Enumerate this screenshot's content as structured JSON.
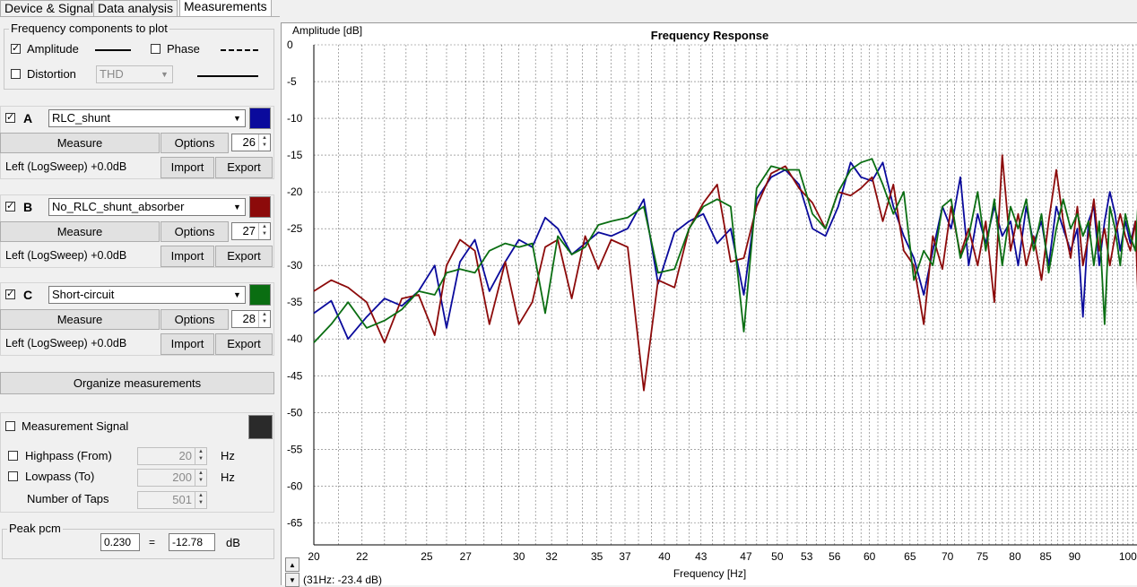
{
  "tabs": [
    "Device & Signal",
    "Data analysis",
    "Measurements"
  ],
  "freq_components": {
    "title": "Frequency components to plot",
    "amplitude_label": "Amplitude",
    "phase_label": "Phase",
    "distortion_label": "Distortion",
    "distortion_select": "THD"
  },
  "measurements": [
    {
      "letter": "A",
      "name": "RLC_shunt",
      "color": "#0a0a9c",
      "taps": "26",
      "source": "Left (LogSweep) +0.0dB"
    },
    {
      "letter": "B",
      "name": "No_RLC_shunt_absorber",
      "color": "#8c0a0a",
      "taps": "27",
      "source": "Left (LogSweep) +0.0dB"
    },
    {
      "letter": "C",
      "name": "Short-circuit",
      "color": "#0a6e12",
      "taps": "28",
      "source": "Left (LogSweep) +0.0dB"
    }
  ],
  "buttons": {
    "measure": "Measure",
    "options": "Options",
    "import": "Import",
    "export": "Export",
    "organize": "Organize measurements"
  },
  "signal": {
    "measurement_signal_label": "Measurement Signal",
    "signal_color": "#2a2a2a",
    "highpass_label": "Highpass (From)",
    "highpass_value": "20",
    "highpass_unit": "Hz",
    "lowpass_label": "Lowpass (To)",
    "lowpass_value": "200",
    "lowpass_unit": "Hz",
    "taps_label": "Number of Taps",
    "taps_value": "501"
  },
  "peak": {
    "label": "Peak pcm",
    "value": "0.230",
    "eq": "=",
    "db_value": "-12.78",
    "unit": "dB"
  },
  "status": "(31Hz: -23.4 dB)",
  "chart_data": {
    "type": "line",
    "title": "Frequency Response",
    "xlabel": "Frequency [Hz]",
    "ylabel": "Amplitude [dB]",
    "xscale": "log",
    "xlim": [
      20,
      102
    ],
    "ylim": [
      -68,
      0
    ],
    "xticks": [
      20,
      22,
      25,
      27,
      30,
      32,
      35,
      37,
      40,
      43,
      47,
      50,
      53,
      56,
      60,
      65,
      70,
      75,
      80,
      85,
      90,
      100
    ],
    "yticks": [
      0,
      -5,
      -10,
      -15,
      -20,
      -25,
      -30,
      -35,
      -40,
      -45,
      -50,
      -55,
      -60,
      -65
    ],
    "grid": true,
    "series": [
      {
        "color": "#0a0a9c",
        "points": [
          [
            20,
            -36.5
          ],
          [
            20.7,
            -34.8
          ],
          [
            21.4,
            -40
          ],
          [
            22.2,
            -37
          ],
          [
            23,
            -34.5
          ],
          [
            23.8,
            -35.5
          ],
          [
            24.6,
            -33.5
          ],
          [
            25.4,
            -30
          ],
          [
            26,
            -38.5
          ],
          [
            26.7,
            -29.5
          ],
          [
            27.5,
            -26.5
          ],
          [
            28.3,
            -33.5
          ],
          [
            29.2,
            -29.5
          ],
          [
            30,
            -26.5
          ],
          [
            30.8,
            -27.5
          ],
          [
            31.6,
            -23.5
          ],
          [
            32.4,
            -25
          ],
          [
            33.3,
            -28.5
          ],
          [
            34.2,
            -27
          ],
          [
            35.1,
            -25.5
          ],
          [
            36,
            -26
          ],
          [
            37.2,
            -25
          ],
          [
            38.4,
            -21
          ],
          [
            39.5,
            -32.5
          ],
          [
            40.8,
            -25.5
          ],
          [
            42,
            -24
          ],
          [
            43.2,
            -23
          ],
          [
            44.4,
            -27
          ],
          [
            45.6,
            -25
          ],
          [
            46.8,
            -34
          ],
          [
            48,
            -21
          ],
          [
            49.4,
            -18
          ],
          [
            50.8,
            -17
          ],
          [
            52.2,
            -19
          ],
          [
            53.6,
            -25
          ],
          [
            55,
            -26
          ],
          [
            56.4,
            -22
          ],
          [
            57.8,
            -16
          ],
          [
            59,
            -18
          ],
          [
            60.3,
            -18.5
          ],
          [
            61.6,
            -16
          ],
          [
            62.9,
            -22
          ],
          [
            64.2,
            -26
          ],
          [
            65.5,
            -29
          ],
          [
            66.8,
            -34
          ],
          [
            68,
            -28
          ],
          [
            69.3,
            -22
          ],
          [
            70.5,
            -25
          ],
          [
            71.8,
            -18
          ],
          [
            73,
            -30
          ],
          [
            74.3,
            -23
          ],
          [
            75.5,
            -27
          ],
          [
            76.8,
            -22
          ],
          [
            78,
            -26
          ],
          [
            79.3,
            -24
          ],
          [
            80.5,
            -30
          ],
          [
            81.8,
            -22
          ],
          [
            83,
            -27
          ],
          [
            84.3,
            -24
          ],
          [
            85.5,
            -30
          ],
          [
            86.8,
            -22
          ],
          [
            88,
            -25
          ],
          [
            89.3,
            -28
          ],
          [
            90.5,
            -25
          ],
          [
            91.5,
            -37
          ],
          [
            92.5,
            -24
          ],
          [
            93.5,
            -22
          ],
          [
            94.5,
            -30
          ],
          [
            95.5,
            -24
          ],
          [
            96.5,
            -20
          ],
          [
            97.5,
            -23
          ],
          [
            98.5,
            -28
          ],
          [
            99.5,
            -24
          ],
          [
            100.5,
            -27
          ],
          [
            101.5,
            -24
          ],
          [
            102,
            -28
          ]
        ]
      },
      {
        "color": "#8c0a0a",
        "points": [
          [
            20,
            -33.5
          ],
          [
            20.7,
            -32
          ],
          [
            21.4,
            -33
          ],
          [
            22.2,
            -35
          ],
          [
            23,
            -40.5
          ],
          [
            23.8,
            -34.5
          ],
          [
            24.6,
            -34
          ],
          [
            25.4,
            -39.5
          ],
          [
            26,
            -30
          ],
          [
            26.7,
            -26.5
          ],
          [
            27.5,
            -28
          ],
          [
            28.3,
            -38
          ],
          [
            29.2,
            -29.5
          ],
          [
            30,
            -38
          ],
          [
            30.8,
            -35
          ],
          [
            31.6,
            -27.5
          ],
          [
            32.4,
            -26.5
          ],
          [
            33.3,
            -34.5
          ],
          [
            34.2,
            -26
          ],
          [
            35.1,
            -30.5
          ],
          [
            36,
            -26.5
          ],
          [
            37.2,
            -27.5
          ],
          [
            38.4,
            -47
          ],
          [
            39.5,
            -32
          ],
          [
            40.8,
            -33
          ],
          [
            42,
            -25
          ],
          [
            43.2,
            -21.5
          ],
          [
            44.4,
            -19
          ],
          [
            45.6,
            -29.5
          ],
          [
            46.8,
            -29
          ],
          [
            48,
            -22
          ],
          [
            49.4,
            -17.5
          ],
          [
            50.8,
            -16.5
          ],
          [
            52.2,
            -19.5
          ],
          [
            53.6,
            -21.5
          ],
          [
            55,
            -25
          ],
          [
            56.4,
            -20
          ],
          [
            57.8,
            -20.5
          ],
          [
            59,
            -19.5
          ],
          [
            60.3,
            -18
          ],
          [
            61.6,
            -24
          ],
          [
            62.9,
            -19
          ],
          [
            64.2,
            -28
          ],
          [
            65.5,
            -30
          ],
          [
            66.8,
            -38
          ],
          [
            68,
            -26
          ],
          [
            69.3,
            -30.5
          ],
          [
            70.5,
            -22
          ],
          [
            71.8,
            -28.5
          ],
          [
            73,
            -25
          ],
          [
            74.3,
            -30
          ],
          [
            75.5,
            -24
          ],
          [
            76.8,
            -35
          ],
          [
            78,
            -15
          ],
          [
            79.3,
            -28
          ],
          [
            80.5,
            -23
          ],
          [
            81.8,
            -30
          ],
          [
            83,
            -26
          ],
          [
            84.3,
            -32
          ],
          [
            85.5,
            -24
          ],
          [
            86.8,
            -17
          ],
          [
            88,
            -24
          ],
          [
            89.3,
            -29
          ],
          [
            90.5,
            -22
          ],
          [
            91.5,
            -30
          ],
          [
            92.5,
            -26
          ],
          [
            93.5,
            -21
          ],
          [
            94.5,
            -28
          ],
          [
            95.5,
            -25
          ],
          [
            96.5,
            -30
          ],
          [
            97.5,
            -26
          ],
          [
            98.5,
            -23
          ],
          [
            99.5,
            -26
          ],
          [
            100.5,
            -28
          ],
          [
            101.5,
            -24
          ],
          [
            102,
            -34
          ]
        ]
      },
      {
        "color": "#0a6e12",
        "points": [
          [
            20,
            -40.5
          ],
          [
            20.7,
            -38
          ],
          [
            21.4,
            -35
          ],
          [
            22.2,
            -38.5
          ],
          [
            23,
            -37.5
          ],
          [
            23.8,
            -36
          ],
          [
            24.6,
            -33.5
          ],
          [
            25.4,
            -34
          ],
          [
            26,
            -31
          ],
          [
            26.7,
            -30.5
          ],
          [
            27.5,
            -31
          ],
          [
            28.3,
            -28
          ],
          [
            29.2,
            -27
          ],
          [
            30,
            -27.5
          ],
          [
            30.8,
            -27
          ],
          [
            31.6,
            -36.5
          ],
          [
            32.4,
            -26
          ],
          [
            33.3,
            -28.5
          ],
          [
            34.2,
            -27.5
          ],
          [
            35.1,
            -24.5
          ],
          [
            36,
            -24
          ],
          [
            37.2,
            -23.5
          ],
          [
            38.4,
            -22
          ],
          [
            39.5,
            -31
          ],
          [
            40.8,
            -30.5
          ],
          [
            42,
            -25
          ],
          [
            43.2,
            -22
          ],
          [
            44.4,
            -21
          ],
          [
            45.6,
            -22
          ],
          [
            46.8,
            -39
          ],
          [
            48,
            -19.5
          ],
          [
            49.4,
            -16.5
          ],
          [
            50.8,
            -17
          ],
          [
            52.2,
            -17
          ],
          [
            53.6,
            -23
          ],
          [
            55,
            -25
          ],
          [
            56.4,
            -20
          ],
          [
            57.8,
            -17
          ],
          [
            59,
            -16
          ],
          [
            60.3,
            -15.5
          ],
          [
            61.6,
            -19
          ],
          [
            62.9,
            -23
          ],
          [
            64.2,
            -20
          ],
          [
            65.5,
            -32
          ],
          [
            66.8,
            -28
          ],
          [
            68,
            -30
          ],
          [
            69.3,
            -22
          ],
          [
            70.5,
            -21
          ],
          [
            71.8,
            -29
          ],
          [
            73,
            -26
          ],
          [
            74.3,
            -20
          ],
          [
            75.5,
            -28
          ],
          [
            76.8,
            -21
          ],
          [
            78,
            -30
          ],
          [
            79.3,
            -22
          ],
          [
            80.5,
            -25
          ],
          [
            81.8,
            -21
          ],
          [
            83,
            -28
          ],
          [
            84.3,
            -23
          ],
          [
            85.5,
            -31
          ],
          [
            86.8,
            -25
          ],
          [
            88,
            -21
          ],
          [
            89.3,
            -25
          ],
          [
            90.5,
            -23
          ],
          [
            91.5,
            -26
          ],
          [
            92.5,
            -24
          ],
          [
            93.5,
            -30
          ],
          [
            94.5,
            -24
          ],
          [
            95.5,
            -38
          ],
          [
            96.5,
            -22
          ],
          [
            97.5,
            -25
          ],
          [
            98.5,
            -30
          ],
          [
            99.5,
            -23
          ],
          [
            100.5,
            -26
          ],
          [
            101.5,
            -28
          ],
          [
            102,
            -22
          ]
        ]
      }
    ]
  }
}
